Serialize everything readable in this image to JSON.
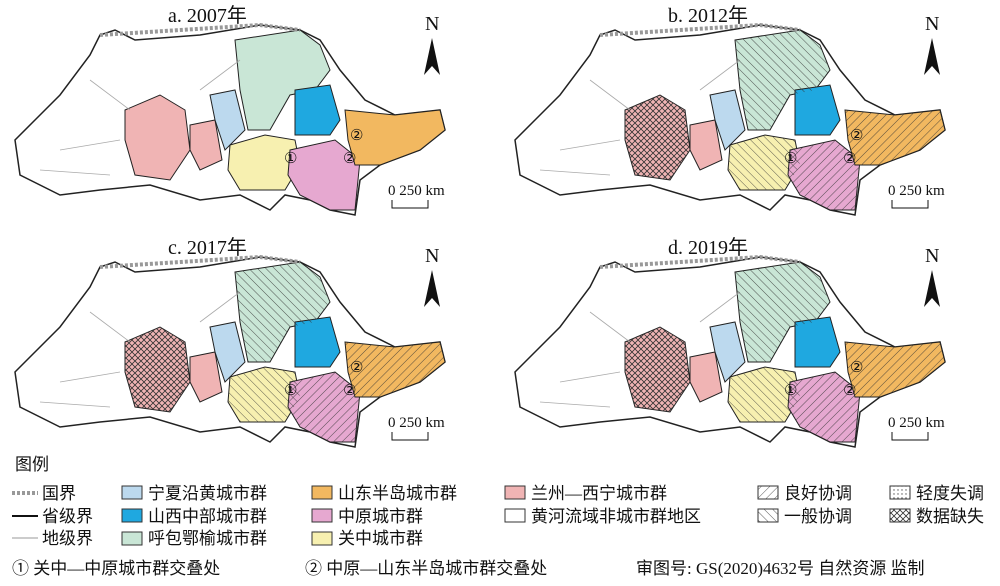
{
  "panels": [
    {
      "title": "a. 2007年"
    },
    {
      "title": "b. 2012年"
    },
    {
      "title": "c. 2017年"
    },
    {
      "title": "d. 2019年"
    }
  ],
  "north": "N",
  "scale": "0 250 km",
  "markers": [
    "①",
    "②"
  ],
  "legend": {
    "title": "图例",
    "items": [
      "国界",
      "省级界",
      "地级界",
      "宁夏沿黄城市群",
      "山西中部城市群",
      "呼包鄂榆城市群",
      "山东半岛城市群",
      "中原城市群",
      "关中城市群",
      "兰州—西宁城市群",
      "黄河流域非城市群地区",
      "良好协调",
      "一般协调",
      "轻度失调",
      "数据缺失"
    ]
  },
  "notes": [
    "① 关中—中原城市群交叠处",
    "② 中原—山东半岛城市群交叠处",
    "审图号: GS(2020)4632号 自然资源 监制"
  ]
}
